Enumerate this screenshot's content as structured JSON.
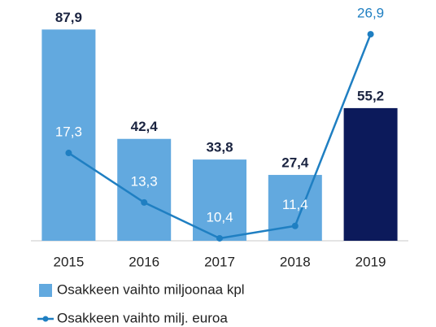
{
  "chart_data": {
    "type": "bar_line",
    "categories": [
      "2015",
      "2016",
      "2017",
      "2018",
      "2019"
    ],
    "series": [
      {
        "name": "Osakkeen vaihto miljoonaa kpl",
        "type": "bar",
        "color": "#62a9df",
        "colors": [
          "#62a9df",
          "#62a9df",
          "#62a9df",
          "#62a9df",
          "#0c1a5b"
        ],
        "label_color": "#1a2340",
        "values": [
          87.9,
          42.4,
          33.8,
          27.4,
          55.2
        ],
        "value_labels": [
          "87,9",
          "42,4",
          "33,8",
          "27,4",
          "55,2"
        ]
      },
      {
        "name": "Osakkeen vaihto milj. euroa",
        "type": "line",
        "axis": "y2",
        "color": "#1f7fc2",
        "values": [
          17.3,
          13.3,
          10.4,
          11.4,
          26.9
        ],
        "value_labels": [
          "17,3",
          "13,3",
          "10,4",
          "11,4",
          "26,9"
        ]
      }
    ],
    "ylim": [
      0,
      88
    ],
    "y2lim": [
      10.2,
      27.3
    ]
  }
}
